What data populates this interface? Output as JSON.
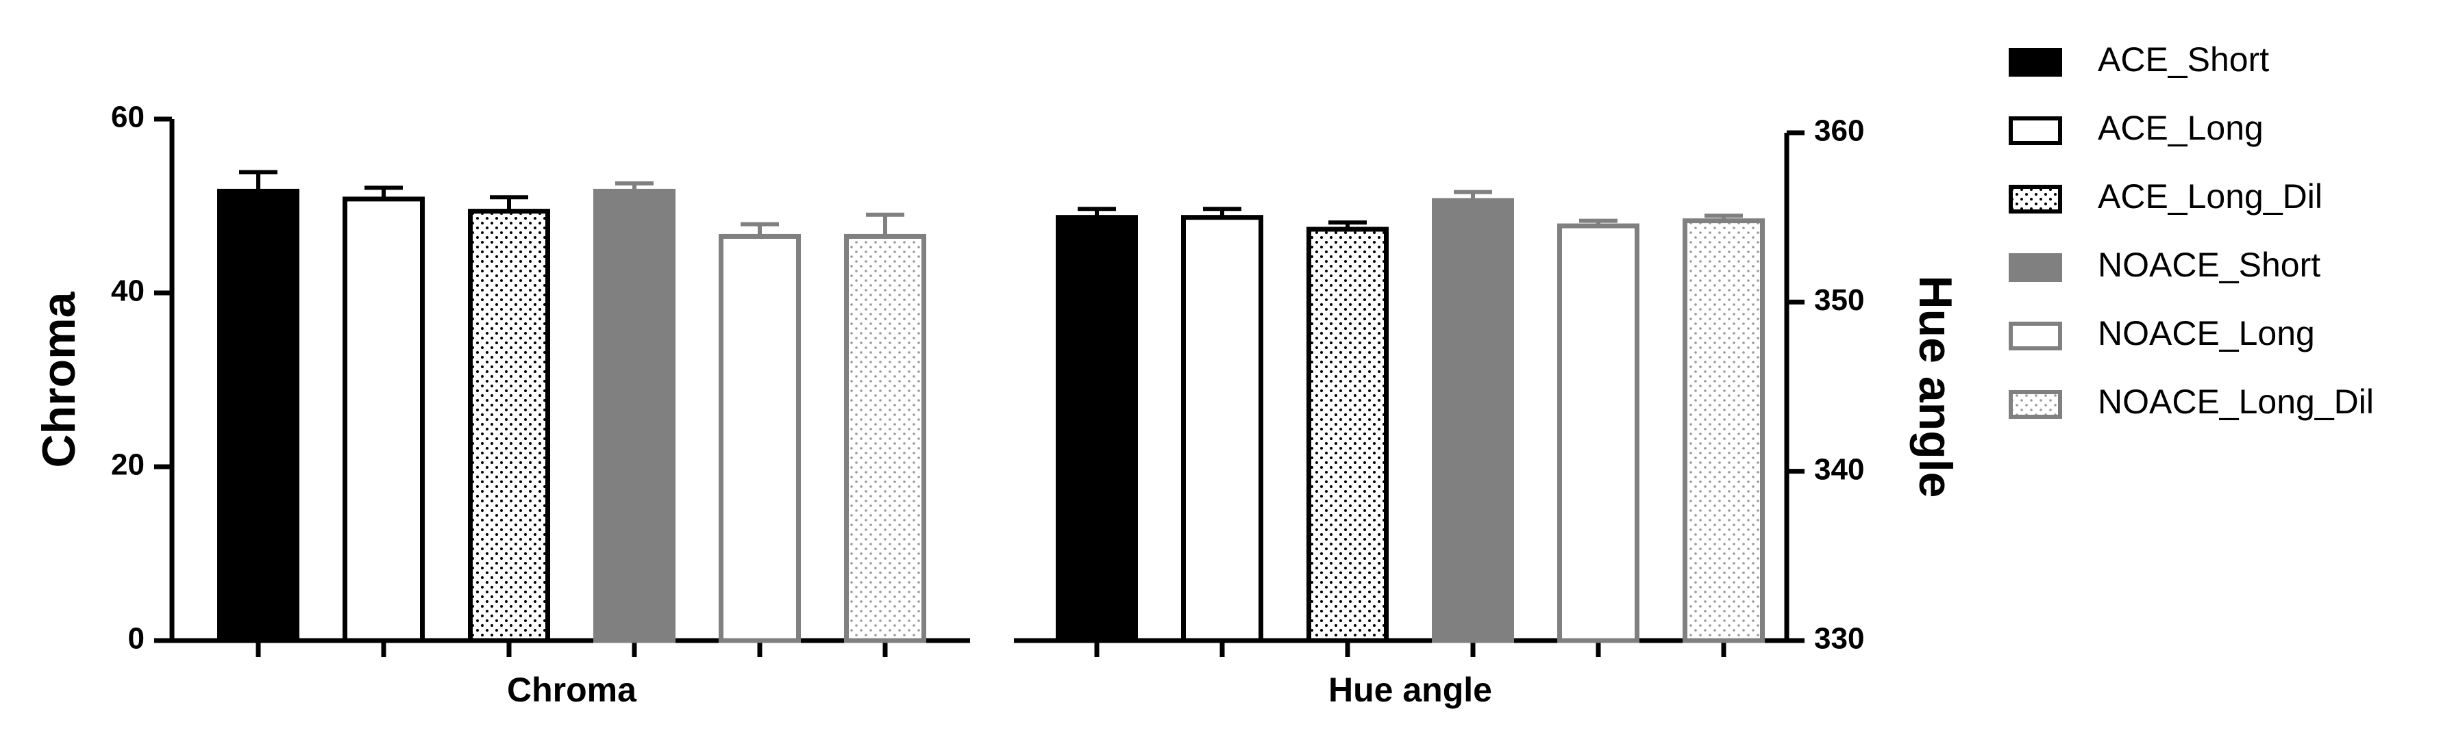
{
  "chart_data": {
    "type": "bar",
    "categories": [
      "Chroma",
      "Hue angle"
    ],
    "category_axis": [
      "y",
      "y2"
    ],
    "ylabel": "Chroma",
    "y2label": "Hue angle",
    "ylim": [
      0,
      60
    ],
    "yticks": [
      0,
      20,
      40,
      60
    ],
    "y2lim": [
      330,
      360
    ],
    "y2ticks": [
      330,
      340,
      350,
      360
    ],
    "series": [
      {
        "name": "ACE_Short",
        "color": "#000000",
        "fill": "solid",
        "values": [
          51.7,
          355.0
        ],
        "errors": [
          2.2,
          0.5
        ]
      },
      {
        "name": "ACE_Long",
        "color": "#000000",
        "fill": "none",
        "values": [
          50.8,
          355.0
        ],
        "errors": [
          1.3,
          0.5
        ]
      },
      {
        "name": "ACE_Long_Dil",
        "color": "#000000",
        "fill": "dots",
        "values": [
          49.4,
          354.3
        ],
        "errors": [
          1.6,
          0.4
        ]
      },
      {
        "name": "NOACE_Short",
        "color": "#808080",
        "fill": "solid",
        "values": [
          51.7,
          356.0
        ],
        "errors": [
          0.9,
          0.5
        ]
      },
      {
        "name": "NOACE_Long",
        "color": "#808080",
        "fill": "none",
        "values": [
          46.5,
          354.5
        ],
        "errors": [
          1.4,
          0.3
        ]
      },
      {
        "name": "NOACE_Long_Dil",
        "color": "#808080",
        "fill": "dots",
        "values": [
          46.5,
          354.8
        ],
        "errors": [
          2.5,
          0.3
        ]
      }
    ]
  }
}
